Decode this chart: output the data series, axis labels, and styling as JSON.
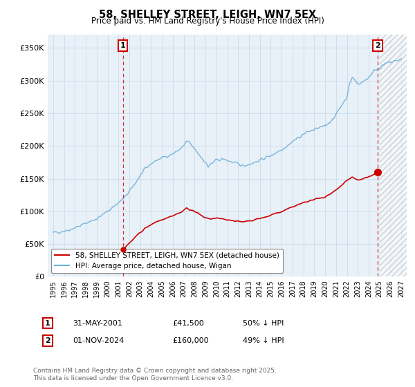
{
  "title": "58, SHELLEY STREET, LEIGH, WN7 5EX",
  "subtitle": "Price paid vs. HM Land Registry's House Price Index (HPI)",
  "legend_line1": "58, SHELLEY STREET, LEIGH, WN7 5EX (detached house)",
  "legend_line2": "HPI: Average price, detached house, Wigan",
  "annotation1_date": "31-MAY-2001",
  "annotation1_price": "£41,500",
  "annotation1_hpi": "50% ↓ HPI",
  "annotation1_year": 2001.42,
  "annotation1_value": 41500,
  "annotation2_date": "01-NOV-2024",
  "annotation2_price": "£160,000",
  "annotation2_hpi": "49% ↓ HPI",
  "annotation2_year": 2024.83,
  "annotation2_value": 160000,
  "hpi_color": "#6ab0d8",
  "price_color": "#cc0000",
  "dashed_color": "#cc0000",
  "background_color": "#ffffff",
  "grid_color": "#c8d8e8",
  "plot_bg_color": "#e8f0f8",
  "yticks": [
    0,
    50000,
    100000,
    150000,
    200000,
    250000,
    300000,
    350000
  ],
  "ylim": [
    0,
    370000
  ],
  "xlim_start": 1994.5,
  "xlim_end": 2027.5,
  "hatch_start": 2025.0,
  "footer": "Contains HM Land Registry data © Crown copyright and database right 2025.\nThis data is licensed under the Open Government Licence v3.0."
}
